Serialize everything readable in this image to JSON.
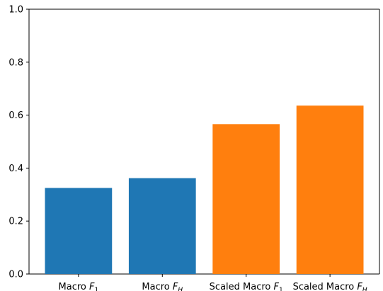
{
  "chart_data": {
    "type": "bar",
    "title": "",
    "xlabel": "",
    "ylabel": "",
    "categories": [
      {
        "base": "Macro F",
        "sub": "1"
      },
      {
        "base": "Macro F",
        "sub": "H"
      },
      {
        "base": "Scaled Macro F",
        "sub": "1"
      },
      {
        "base": "Scaled Macro F",
        "sub": "H"
      }
    ],
    "values": [
      0.325,
      0.362,
      0.566,
      0.636
    ],
    "colors": [
      "#1f77b4",
      "#1f77b4",
      "#ff7f0e",
      "#ff7f0e"
    ],
    "ylim": [
      0.0,
      1.0
    ],
    "yticks": [
      "0.0",
      "0.2",
      "0.4",
      "0.6",
      "0.8",
      "1.0"
    ],
    "grid": false,
    "legend": "none"
  }
}
